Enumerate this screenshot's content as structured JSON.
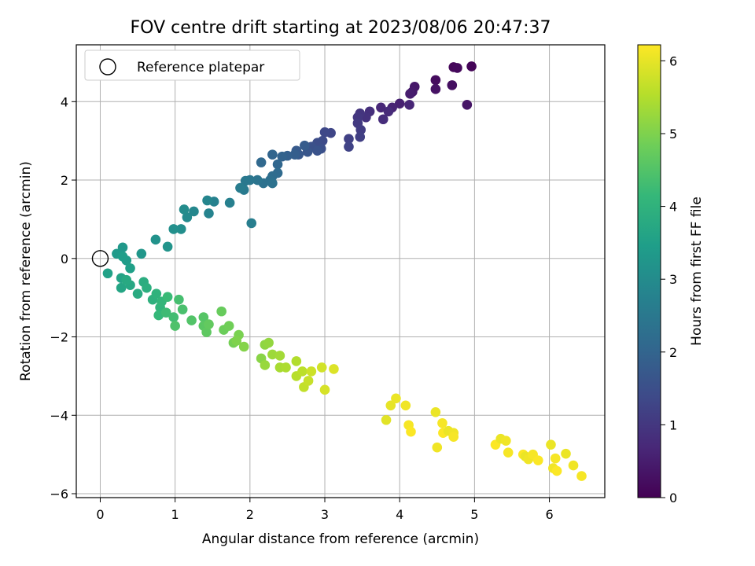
{
  "chart_data": {
    "type": "scatter",
    "title": "FOV centre drift starting at 2023/08/06 20:47:37",
    "xlabel": "Angular distance from reference (arcmin)",
    "ylabel": "Rotation from reference (arcmin)",
    "xlim": [
      -0.32,
      6.74
    ],
    "ylim": [
      -6.1,
      5.45
    ],
    "xticks": [
      0,
      1,
      2,
      3,
      4,
      5,
      6
    ],
    "yticks": [
      -6,
      -4,
      -2,
      0,
      2,
      4
    ],
    "grid": true,
    "legend": {
      "placement": "top-left",
      "entries": [
        "Reference platepar"
      ]
    },
    "reference_point": {
      "x": 0,
      "y": 0,
      "label": "Reference platepar"
    },
    "colorbar": {
      "label": "Hours from first FF file",
      "colormap": "viridis",
      "range": [
        0,
        6.22
      ],
      "ticks": [
        0,
        1,
        2,
        3,
        4,
        5,
        6
      ]
    },
    "points": [
      [
        4.96,
        4.9,
        0.05
      ],
      [
        4.72,
        4.88,
        0.1
      ],
      [
        4.77,
        4.86,
        0.15
      ],
      [
        4.48,
        4.55,
        0.2
      ],
      [
        4.7,
        4.42,
        0.25
      ],
      [
        4.48,
        4.32,
        0.3
      ],
      [
        4.9,
        3.92,
        0.35
      ],
      [
        4.2,
        4.38,
        0.4
      ],
      [
        4.17,
        4.25,
        0.45
      ],
      [
        4.14,
        4.2,
        0.5
      ],
      [
        4.0,
        3.95,
        0.55
      ],
      [
        3.9,
        3.85,
        0.6
      ],
      [
        4.13,
        3.92,
        0.65
      ],
      [
        3.75,
        3.85,
        0.7
      ],
      [
        3.85,
        3.75,
        0.75
      ],
      [
        3.78,
        3.55,
        0.8
      ],
      [
        3.6,
        3.75,
        0.85
      ],
      [
        3.55,
        3.6,
        0.9
      ],
      [
        3.47,
        3.7,
        0.95
      ],
      [
        3.44,
        3.6,
        1.0
      ],
      [
        3.44,
        3.45,
        1.05
      ],
      [
        3.48,
        3.28,
        1.1
      ],
      [
        3.47,
        3.1,
        1.15
      ],
      [
        3.32,
        3.05,
        1.2
      ],
      [
        3.32,
        2.85,
        1.25
      ],
      [
        3.08,
        3.2,
        1.3
      ],
      [
        3.0,
        3.22,
        1.35
      ],
      [
        2.97,
        3.0,
        1.4
      ],
      [
        2.9,
        2.95,
        1.45
      ],
      [
        2.95,
        2.8,
        1.5
      ],
      [
        2.82,
        2.85,
        1.55
      ],
      [
        2.9,
        2.75,
        1.6
      ],
      [
        2.77,
        2.72,
        1.65
      ],
      [
        2.65,
        2.65,
        1.7
      ],
      [
        2.62,
        2.75,
        1.75
      ],
      [
        2.73,
        2.88,
        1.8
      ],
      [
        2.6,
        2.65,
        1.85
      ],
      [
        2.5,
        2.62,
        1.9
      ],
      [
        2.43,
        2.6,
        1.95
      ],
      [
        2.3,
        2.65,
        2.0
      ],
      [
        2.37,
        2.4,
        2.05
      ],
      [
        2.15,
        2.45,
        2.1
      ],
      [
        2.37,
        2.18,
        2.15
      ],
      [
        2.3,
        2.1,
        2.2
      ],
      [
        2.27,
        2.0,
        2.25
      ],
      [
        2.18,
        1.92,
        2.3
      ],
      [
        2.3,
        1.92,
        2.35
      ],
      [
        2.1,
        2.0,
        2.4
      ],
      [
        2.0,
        2.0,
        2.45
      ],
      [
        1.94,
        1.98,
        2.5
      ],
      [
        1.92,
        1.75,
        2.55
      ],
      [
        1.87,
        1.8,
        2.6
      ],
      [
        2.02,
        0.9,
        2.65
      ],
      [
        1.73,
        1.42,
        2.7
      ],
      [
        1.52,
        1.45,
        2.75
      ],
      [
        1.45,
        1.15,
        2.8
      ],
      [
        1.43,
        1.48,
        2.85
      ],
      [
        1.25,
        1.2,
        2.9
      ],
      [
        1.16,
        1.05,
        2.95
      ],
      [
        1.12,
        1.25,
        3.0
      ],
      [
        1.08,
        0.75,
        3.05
      ],
      [
        0.98,
        0.75,
        3.1
      ],
      [
        0.74,
        0.48,
        3.15
      ],
      [
        0.9,
        0.3,
        3.2
      ],
      [
        0.55,
        0.12,
        3.25
      ],
      [
        0.3,
        0.28,
        3.3
      ],
      [
        0.22,
        0.12,
        3.35
      ],
      [
        0.35,
        -0.05,
        3.4
      ],
      [
        0.3,
        0.05,
        3.45
      ],
      [
        0.4,
        -0.25,
        3.5
      ],
      [
        0.1,
        -0.38,
        3.55
      ],
      [
        0.28,
        -0.5,
        3.6
      ],
      [
        0.28,
        -0.75,
        3.65
      ],
      [
        0.4,
        -0.68,
        3.7
      ],
      [
        0.35,
        -0.55,
        3.75
      ],
      [
        0.5,
        -0.9,
        3.8
      ],
      [
        0.58,
        -0.6,
        3.85
      ],
      [
        0.62,
        -0.75,
        3.9
      ],
      [
        0.7,
        -1.05,
        3.95
      ],
      [
        0.75,
        -0.9,
        4.0
      ],
      [
        0.8,
        -1.25,
        4.05
      ],
      [
        0.82,
        -1.1,
        4.1
      ],
      [
        0.78,
        -1.45,
        4.15
      ],
      [
        0.9,
        -0.98,
        4.2
      ],
      [
        0.88,
        -1.38,
        4.25
      ],
      [
        0.98,
        -1.5,
        4.3
      ],
      [
        1.05,
        -1.05,
        4.35
      ],
      [
        1.1,
        -1.3,
        4.4
      ],
      [
        1.0,
        -1.72,
        4.45
      ],
      [
        1.22,
        -1.58,
        4.5
      ],
      [
        1.38,
        -1.5,
        4.55
      ],
      [
        1.38,
        -1.72,
        4.6
      ],
      [
        1.42,
        -1.88,
        4.65
      ],
      [
        1.45,
        -1.68,
        4.7
      ],
      [
        1.62,
        -1.35,
        4.75
      ],
      [
        1.65,
        -1.82,
        4.8
      ],
      [
        1.72,
        -1.72,
        4.85
      ],
      [
        1.78,
        -2.15,
        4.9
      ],
      [
        1.85,
        -1.95,
        4.95
      ],
      [
        1.82,
        -2.1,
        5.0
      ],
      [
        1.92,
        -2.25,
        5.05
      ],
      [
        2.15,
        -2.55,
        5.1
      ],
      [
        2.2,
        -2.2,
        5.15
      ],
      [
        2.25,
        -2.15,
        5.2
      ],
      [
        2.2,
        -2.72,
        5.25
      ],
      [
        2.3,
        -2.45,
        5.3
      ],
      [
        2.4,
        -2.48,
        5.35
      ],
      [
        2.4,
        -2.78,
        5.4
      ],
      [
        2.48,
        -2.78,
        5.45
      ],
      [
        2.62,
        -2.62,
        5.5
      ],
      [
        2.62,
        -3.0,
        5.55
      ],
      [
        2.7,
        -2.88,
        5.6
      ],
      [
        2.72,
        -3.28,
        5.65
      ],
      [
        2.78,
        -3.12,
        5.7
      ],
      [
        2.82,
        -2.88,
        5.75
      ],
      [
        2.96,
        -2.78,
        5.8
      ],
      [
        3.0,
        -3.35,
        5.85
      ],
      [
        3.12,
        -2.82,
        5.9
      ],
      [
        3.82,
        -4.12,
        5.95
      ],
      [
        3.88,
        -3.75,
        6.0
      ],
      [
        3.95,
        -3.57,
        6.05
      ],
      [
        4.08,
        -3.75,
        6.1
      ],
      [
        4.12,
        -4.25,
        6.15
      ],
      [
        4.15,
        -4.42,
        6.2
      ],
      [
        4.48,
        -3.92,
        6.05
      ],
      [
        4.5,
        -4.82,
        6.1
      ],
      [
        4.57,
        -4.2,
        6.15
      ],
      [
        4.58,
        -4.45,
        6.2
      ],
      [
        4.65,
        -4.4,
        6.05
      ],
      [
        4.72,
        -4.45,
        6.1
      ],
      [
        4.72,
        -4.55,
        6.15
      ],
      [
        5.28,
        -4.75,
        6.2
      ],
      [
        5.35,
        -4.6,
        6.05
      ],
      [
        5.42,
        -4.65,
        6.1
      ],
      [
        5.45,
        -4.95,
        6.15
      ],
      [
        5.65,
        -5.0,
        6.2
      ],
      [
        5.68,
        -5.05,
        6.05
      ],
      [
        5.72,
        -5.12,
        6.1
      ],
      [
        5.78,
        -5.0,
        6.15
      ],
      [
        5.85,
        -5.15,
        6.2
      ],
      [
        6.02,
        -4.75,
        6.05
      ],
      [
        6.05,
        -5.35,
        6.1
      ],
      [
        6.08,
        -5.1,
        6.15
      ],
      [
        6.1,
        -5.42,
        6.2
      ],
      [
        6.22,
        -4.98,
        6.05
      ],
      [
        6.32,
        -5.28,
        6.1
      ],
      [
        6.43,
        -5.55,
        6.15
      ]
    ]
  },
  "viridis_stops": [
    "#440154",
    "#482878",
    "#3e4a89",
    "#31688e",
    "#26828e",
    "#1f9e89",
    "#35b779",
    "#6ece58",
    "#b5de2b",
    "#fde725"
  ]
}
